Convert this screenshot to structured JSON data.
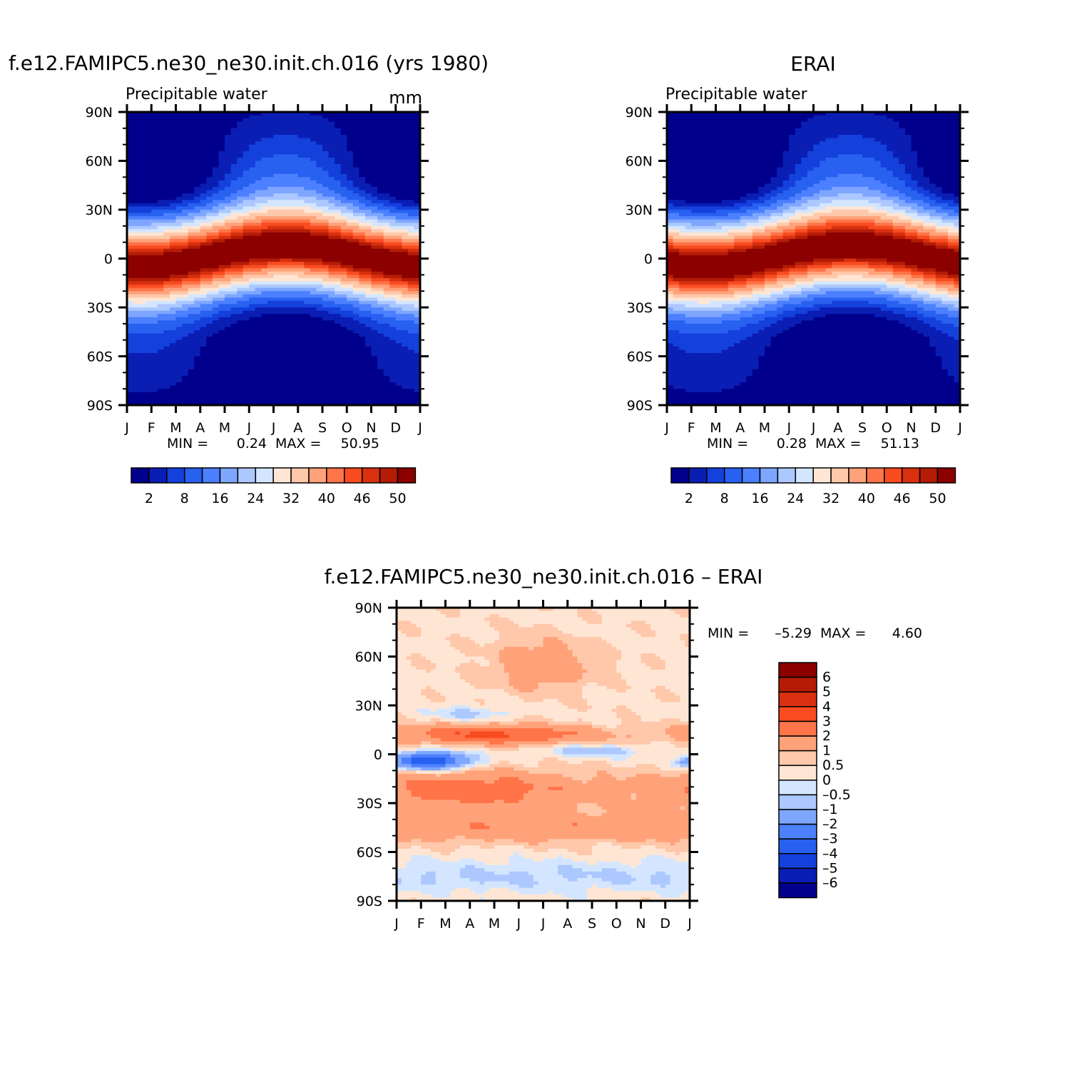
{
  "months": [
    "J",
    "F",
    "M",
    "A",
    "M",
    "J",
    "J",
    "A",
    "S",
    "O",
    "N",
    "D",
    "J"
  ],
  "lat_ticks": [
    "90N",
    "60N",
    "30N",
    "0",
    "30S",
    "60S",
    "90S"
  ],
  "chart_data": [
    {
      "type": "heatmap",
      "id": "model",
      "title": "f.e12.FAMIPC5.ne30_ne30.init.ch.016 (yrs 1980)",
      "left_label": "Precipitable water",
      "right_label": "mm",
      "min_label": "MIN =",
      "min_value": "0.24",
      "max_label": "MAX =",
      "max_value": "50.95",
      "data_min": 0.24,
      "data_max": 50.95,
      "equator_peak_month": 6.5,
      "colorbar_labels": [
        "2",
        "8",
        "16",
        "24",
        "32",
        "40",
        "46",
        "50"
      ],
      "colorbar_colors": [
        "#00008c",
        "#0a1eb4",
        "#1440dc",
        "#2860f0",
        "#4c80ff",
        "#7ea6ff",
        "#acc8ff",
        "#d4e6ff",
        "#ffe6d4",
        "#ffc8aa",
        "#ffa27a",
        "#ff7448",
        "#f84c20",
        "#d83010",
        "#b41c06",
        "#8c0000"
      ]
    },
    {
      "type": "heatmap",
      "id": "erai",
      "title": "ERAI",
      "left_label": "Precipitable water",
      "right_label": "",
      "min_label": "MIN =",
      "min_value": "0.28",
      "max_label": "MAX =",
      "max_value": "51.13",
      "data_min": 0.28,
      "data_max": 51.13,
      "equator_peak_month": 7.5,
      "colorbar_labels": [
        "2",
        "8",
        "16",
        "24",
        "32",
        "40",
        "46",
        "50"
      ],
      "colorbar_colors": [
        "#00008c",
        "#0a1eb4",
        "#1440dc",
        "#2860f0",
        "#4c80ff",
        "#7ea6ff",
        "#acc8ff",
        "#d4e6ff",
        "#ffe6d4",
        "#ffc8aa",
        "#ffa27a",
        "#ff7448",
        "#f84c20",
        "#d83010",
        "#b41c06",
        "#8c0000"
      ]
    },
    {
      "type": "heatmap",
      "id": "difference",
      "title": "f.e12.FAMIPC5.ne30_ne30.init.ch.016 – ERAI",
      "min_label": "MIN =",
      "min_value": "–5.29",
      "max_label": "MAX =",
      "max_value": "4.60",
      "data_min": -5.29,
      "data_max": 4.6,
      "colorbar_labels": [
        "6",
        "5",
        "4",
        "3",
        "2",
        "1",
        "0.5",
        "0",
        "–0.5",
        "–1",
        "–2",
        "–3",
        "–4",
        "–5",
        "–6"
      ],
      "colorbar_colors": [
        "#8c0000",
        "#b41c06",
        "#d83010",
        "#f84c20",
        "#ff7448",
        "#ffa27a",
        "#ffc8aa",
        "#ffe6d4",
        "#d4e6ff",
        "#acc8ff",
        "#7ea6ff",
        "#4c80ff",
        "#2860f0",
        "#1440dc",
        "#0a1eb4",
        "#00008c"
      ]
    }
  ]
}
